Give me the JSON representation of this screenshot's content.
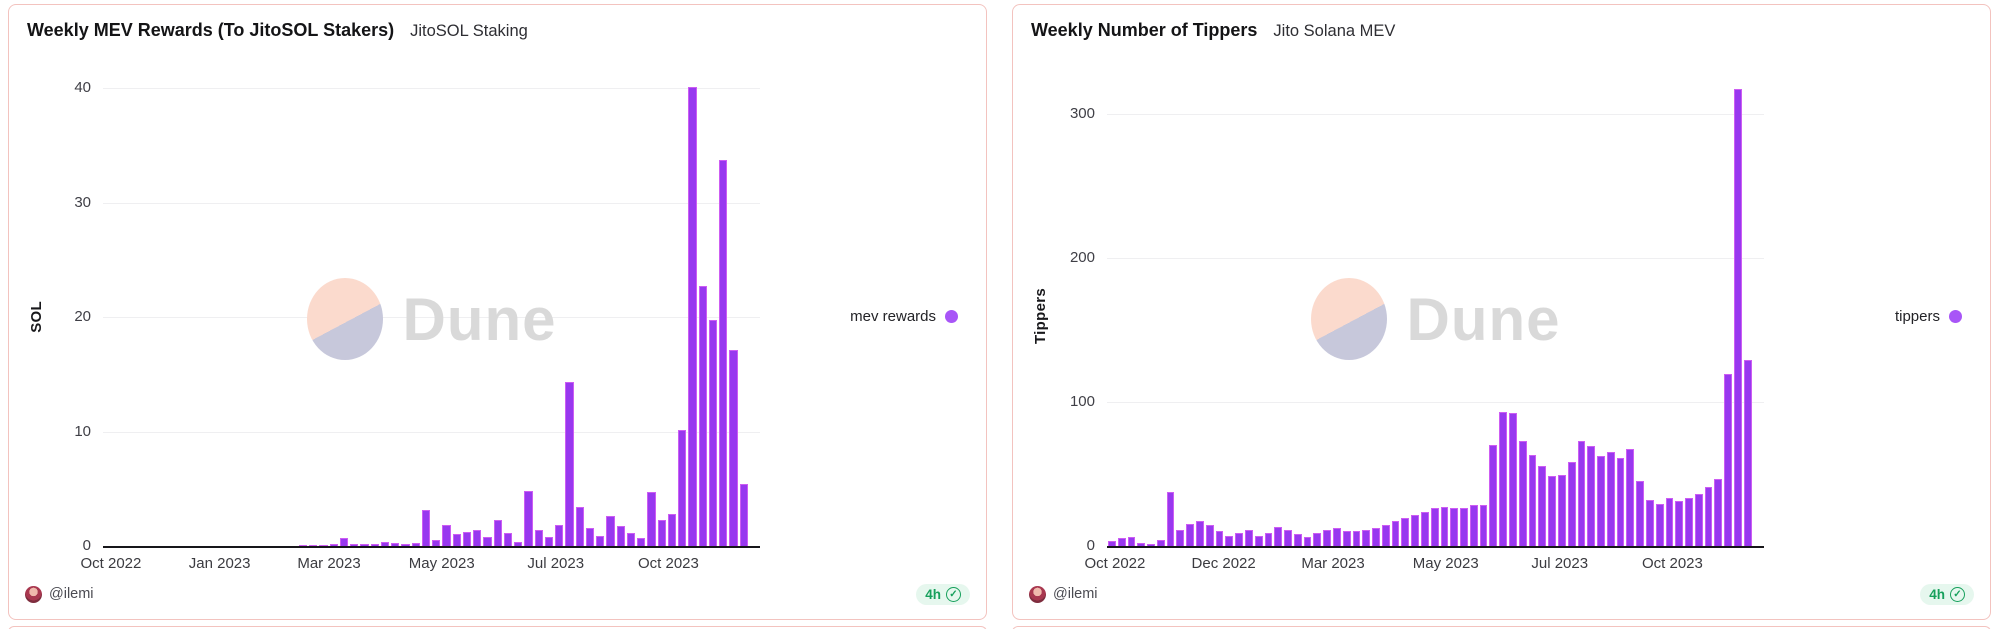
{
  "colors": {
    "bar_fill": "#9838EF",
    "bar_edge": "#CD5DF3",
    "legend_dot": "#A855F7",
    "panel_border": "#F3C3BF",
    "badge_green": "#17A05C",
    "watermark_peach": "#FBDACD",
    "watermark_lavender": "#C7C8DB"
  },
  "panels": [
    {
      "title": "Weekly MEV Rewards (To JitoSOL Stakers)",
      "subtitle": "JitoSOL Staking",
      "y_axis_title": "SOL",
      "legend": {
        "label": "mev rewards",
        "dot_color": "#A855F7"
      },
      "footer": {
        "handle": "@ilemi",
        "badge": "4h"
      },
      "watermark_text": "Dune",
      "chart_data": {
        "type": "bar",
        "title": "Weekly MEV Rewards (To JitoSOL Stakers)",
        "xlabel": "",
        "ylabel": "SOL",
        "x_tick_labels": [
          "Oct 2022",
          "Jan 2023",
          "Mar 2023",
          "May 2023",
          "Jul 2023",
          "Oct 2023"
        ],
        "yticks": [
          0,
          10,
          20,
          30,
          40
        ],
        "ylim": [
          0,
          41.5
        ],
        "grid": "horizontal",
        "legend_position": "right-center",
        "series": [
          {
            "name": "mev rewards",
            "values": [
              0.02,
              0.02,
              0.02,
              0.02,
              0.03,
              0.03,
              0.03,
              0.03,
              0.03,
              0.04,
              0.04,
              0.05,
              0.05,
              0.06,
              0.07,
              0.08,
              0.09,
              0.1,
              0.12,
              0.14,
              0.16,
              0.18,
              0.25,
              0.8,
              0.3,
              0.25,
              0.3,
              0.4,
              0.35,
              0.3,
              0.35,
              3.2,
              0.6,
              1.9,
              1.1,
              1.3,
              1.5,
              0.9,
              2.4,
              1.2,
              0.4,
              4.9,
              1.5,
              0.9,
              1.9,
              14.4,
              3.5,
              1.7,
              1.0,
              2.7,
              1.8,
              1.2,
              0.8,
              4.8,
              2.4,
              2.9,
              10.2,
              40.2,
              22.8,
              19.8,
              33.8,
              17.2,
              5.5
            ]
          }
        ]
      }
    },
    {
      "title": "Weekly Number of Tippers",
      "subtitle": "Jito Solana MEV",
      "y_axis_title": "Tippers",
      "legend": {
        "label": "tippers",
        "dot_color": "#A855F7"
      },
      "footer": {
        "handle": "@ilemi",
        "badge": "4h"
      },
      "watermark_text": "Dune",
      "chart_data": {
        "type": "bar",
        "title": "Weekly Number of Tippers",
        "xlabel": "",
        "ylabel": "Tippers",
        "x_tick_labels": [
          "Oct 2022",
          "Dec 2022",
          "Mar 2023",
          "May 2023",
          "Jul 2023",
          "Oct 2023"
        ],
        "yticks": [
          0,
          100,
          200,
          300
        ],
        "ylim": [
          0,
          330
        ],
        "grid": "horizontal",
        "legend_position": "right-center",
        "series": [
          {
            "name": "tippers",
            "values": [
              4,
              6,
              7,
              3,
              2,
              5,
              38,
              12,
              16,
              18,
              15,
              11,
              8,
              10,
              12,
              8,
              10,
              14,
              12,
              9,
              7,
              10,
              12,
              13,
              11,
              11,
              12,
              13,
              15,
              18,
              20,
              22,
              24,
              27,
              28,
              27,
              27,
              29,
              29,
              71,
              94,
              93,
              74,
              64,
              56,
              49,
              50,
              59,
              74,
              70,
              63,
              66,
              62,
              68,
              46,
              33,
              30,
              34,
              32,
              34,
              37,
              42,
              47,
              120,
              318,
              130
            ]
          }
        ]
      }
    }
  ]
}
